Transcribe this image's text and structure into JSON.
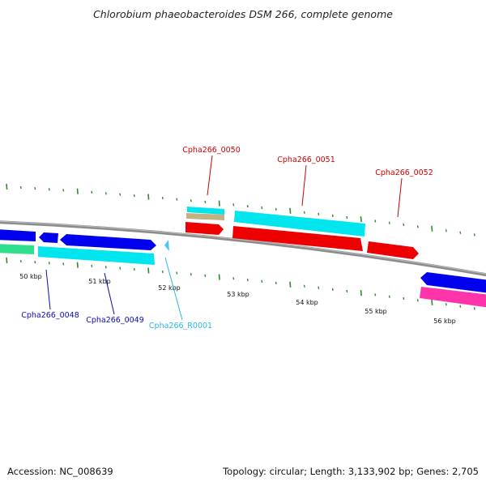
{
  "title": "Chlorobium phaeobacteroides DSM 266, complete genome",
  "footer": {
    "accession": "Accession: NC_008639",
    "stats": "Topology: circular; Length: 3,133,902 bp; Genes: 2,705"
  },
  "colors": {
    "backbone": "#8c8c8c",
    "gc_skew_marks": "#2e8b2e",
    "cds_forward": "#00e5ee",
    "cds_reverse": "#0000ee",
    "rna": "#4fc3f7",
    "highlight_red": "#ee0000",
    "label_blue": "#0a0ab8",
    "label_red": "#cc0000",
    "label_cyan": "#29b6e6"
  },
  "scale_labels": [
    "50 kbp",
    "51 kbp",
    "52 kbp",
    "53 kbp",
    "54 kbp",
    "55 kbp",
    "56 kbp"
  ],
  "gene_labels": [
    {
      "name": "Cpha266_0048",
      "color": "blue"
    },
    {
      "name": "Cpha266_0049",
      "color": "blue"
    },
    {
      "name": "Cpha266_R0001",
      "color": "cyan"
    },
    {
      "name": "Cpha266_0050",
      "color": "red"
    },
    {
      "name": "Cpha266_0051",
      "color": "red"
    },
    {
      "name": "Cpha266_0052",
      "color": "red"
    }
  ]
}
